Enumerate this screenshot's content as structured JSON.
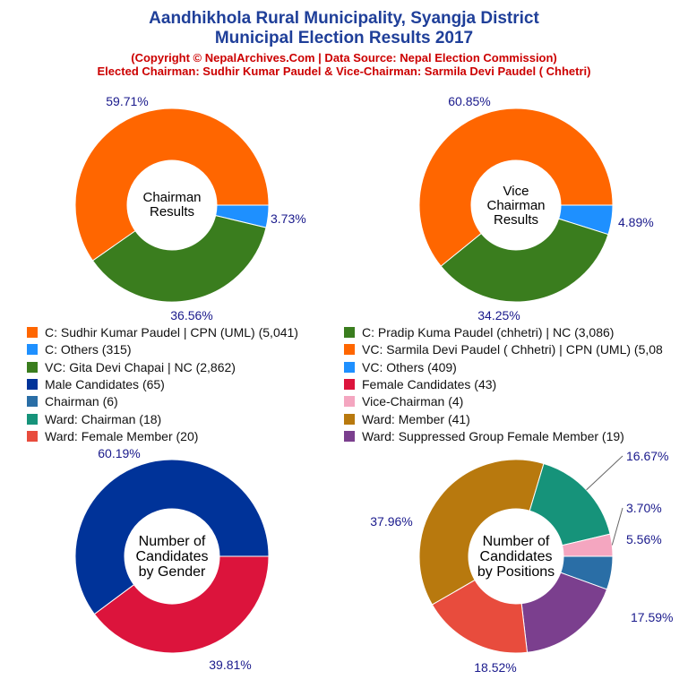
{
  "header": {
    "title_line1": "Aandhikhola Rural Municipality, Syangja District",
    "title_line2": "Municipal Election Results 2017",
    "subtitle_line1": "(Copyright © NepalArchives.Com | Data Source: Nepal Election Commission)",
    "subtitle_line2": "Elected Chairman: Sudhir Kumar Paudel & Vice-Chairman: Sarmila Devi Paudel ( Chhetri)"
  },
  "legend": [
    {
      "label": "C: Sudhir Kumar Paudel | CPN (UML) (5,041)",
      "color": "#ff6600"
    },
    {
      "label": "C: Pradip Kuma Paudel (chhetri) | NC (3,086)",
      "color": "#3a7d1e"
    },
    {
      "label": "C: Others (315)",
      "color": "#1e90ff"
    },
    {
      "label": "VC: Sarmila Devi Paudel ( Chhetri) | CPN (UML) (5,08",
      "color": "#ff6600"
    },
    {
      "label": "VC: Gita Devi Chapai | NC (2,862)",
      "color": "#3a7d1e"
    },
    {
      "label": "VC: Others (409)",
      "color": "#1e90ff"
    },
    {
      "label": "Male Candidates (65)",
      "color": "#003399"
    },
    {
      "label": "Female Candidates (43)",
      "color": "#dc143c"
    },
    {
      "label": "Chairman (6)",
      "color": "#2a6ea6"
    },
    {
      "label": "Vice-Chairman (4)",
      "color": "#f4a6c0"
    },
    {
      "label": "Ward: Chairman (18)",
      "color": "#16937a"
    },
    {
      "label": "Ward: Member (41)",
      "color": "#b8790e"
    },
    {
      "label": "Ward: Female Member (20)",
      "color": "#e84c3d"
    },
    {
      "label": "Ward: Suppressed Group Female Member (19)",
      "color": "#7b3f8e"
    }
  ],
  "chart_data": [
    {
      "type": "pie",
      "title": "Chairman Results",
      "center_label": [
        "Chairman",
        "Results"
      ],
      "slices": [
        {
          "label": "C: Others (315)",
          "value": 3.73,
          "display": "3.73%",
          "color": "#1e90ff"
        },
        {
          "label": "C: Pradip Kuma Paudel (chhetri) | NC (3,086)",
          "value": 36.56,
          "display": "36.56%",
          "color": "#3a7d1e"
        },
        {
          "label": "C: Sudhir Kumar Paudel | CPN (UML) (5,041)",
          "value": 59.71,
          "display": "59.71%",
          "color": "#ff6600"
        }
      ]
    },
    {
      "type": "pie",
      "title": "Vice Chairman Results",
      "center_label": [
        "Vice",
        "Chairman",
        "Results"
      ],
      "slices": [
        {
          "label": "VC: Others (409)",
          "value": 4.89,
          "display": "4.89%",
          "color": "#1e90ff"
        },
        {
          "label": "VC: Gita Devi Chapai | NC (2,862)",
          "value": 34.25,
          "display": "34.25%",
          "color": "#3a7d1e"
        },
        {
          "label": "VC: Sarmila Devi Paudel ( Chhetri) | CPN (UML) (5,08",
          "value": 60.85,
          "display": "60.85%",
          "color": "#ff6600"
        }
      ]
    },
    {
      "type": "pie",
      "title": "Number of Candidates by Gender",
      "center_label": [
        "Number of",
        "Candidates",
        "by Gender"
      ],
      "slices": [
        {
          "label": "Female Candidates (43)",
          "value": 39.81,
          "display": "39.81%",
          "color": "#dc143c"
        },
        {
          "label": "Male Candidates (65)",
          "value": 60.19,
          "display": "60.19%",
          "color": "#003399"
        }
      ]
    },
    {
      "type": "pie",
      "title": "Number of Candidates by Positions",
      "center_label": [
        "Number of",
        "Candidates",
        "by Positions"
      ],
      "slices": [
        {
          "label": "Chairman (6)",
          "value": 5.56,
          "display": "5.56%",
          "color": "#2a6ea6"
        },
        {
          "label": "Ward: Suppressed Group Female Member (19)",
          "value": 17.59,
          "display": "17.59%",
          "color": "#7b3f8e"
        },
        {
          "label": "Ward: Female Member (20)",
          "value": 18.52,
          "display": "18.52%",
          "color": "#e84c3d"
        },
        {
          "label": "Ward: Member (41)",
          "value": 37.96,
          "display": "37.96%",
          "color": "#b8790e"
        },
        {
          "label": "Ward: Chairman (18)",
          "value": 16.67,
          "display": "16.67%",
          "color": "#16937a"
        },
        {
          "label": "Vice-Chairman (4)",
          "value": 3.7,
          "display": "3.70%",
          "color": "#f4a6c0"
        }
      ]
    }
  ]
}
